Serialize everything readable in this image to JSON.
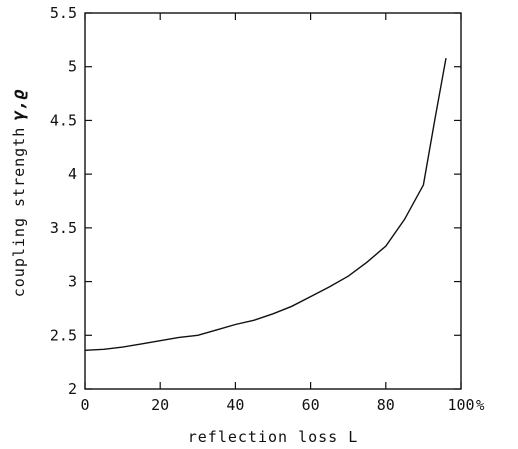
{
  "chart_data": {
    "type": "line",
    "xlabel": "reflection loss L",
    "x_unit": "%",
    "ylabel": "coupling strength",
    "ylabel_symbol": "γ,ϱ",
    "xlim": [
      0,
      100
    ],
    "ylim": [
      2,
      5.5
    ],
    "x_ticks": [
      0,
      20,
      40,
      60,
      80,
      100
    ],
    "x_tick_labels": [
      "0",
      "20",
      "40",
      "60",
      "80",
      "100"
    ],
    "y_ticks": [
      2,
      2.5,
      3,
      3.5,
      4,
      4.5,
      5,
      5.5
    ],
    "y_tick_labels": [
      "2",
      "2.5",
      "3",
      "3.5",
      "4",
      "4.5",
      "5",
      "5.5"
    ],
    "grid": false,
    "series": [
      {
        "x": [
          0,
          5,
          10,
          15,
          20,
          25,
          30,
          35,
          40,
          45,
          50,
          55,
          60,
          65,
          70,
          75,
          80,
          85,
          90,
          93,
          96
        ],
        "y": [
          2.36,
          2.37,
          2.39,
          2.42,
          2.45,
          2.48,
          2.5,
          2.55,
          2.6,
          2.64,
          2.7,
          2.77,
          2.86,
          2.95,
          3.05,
          3.18,
          3.33,
          3.58,
          3.9,
          4.5,
          5.08
        ]
      }
    ]
  }
}
